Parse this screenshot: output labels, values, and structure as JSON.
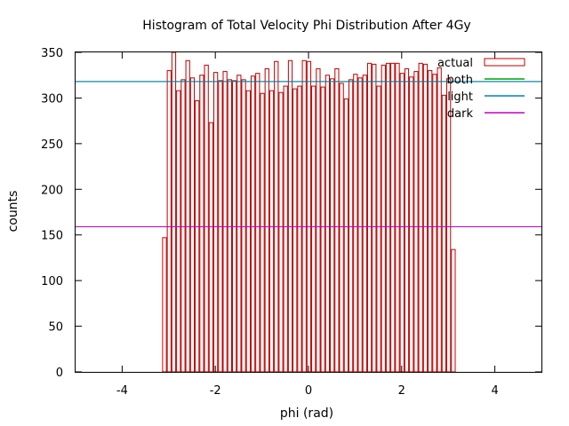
{
  "chart_data": {
    "type": "bar",
    "title": "Histogram of Total Velocity Phi Distribution After 4Gy",
    "xlabel": "phi (rad)",
    "ylabel": "counts",
    "xlim": [
      -5,
      5
    ],
    "ylim": [
      0,
      350
    ],
    "xticks": [
      "-4",
      "-2",
      "0",
      "2",
      "4"
    ],
    "yticks": [
      "0",
      "50",
      "100",
      "150",
      "200",
      "250",
      "300",
      "350"
    ],
    "grid": false,
    "legend_position": "top-right",
    "bin_start": -3.1416,
    "bin_width": 0.1,
    "bars": [
      147,
      330,
      350,
      308,
      320,
      341,
      322,
      297,
      325,
      336,
      273,
      328,
      319,
      329,
      320,
      319,
      325,
      320,
      308,
      324,
      327,
      305,
      332,
      308,
      340,
      306,
      313,
      341,
      310,
      313,
      341,
      340,
      313,
      332,
      312,
      325,
      321,
      332,
      316,
      299,
      320,
      326,
      322,
      325,
      338,
      337,
      313,
      336,
      338,
      338,
      338,
      327,
      332,
      323,
      329,
      338,
      337,
      330,
      326,
      333,
      303,
      321,
      134
    ],
    "series": [
      {
        "name": "actual",
        "kind": "histogram",
        "color": "#c00000"
      },
      {
        "name": "both",
        "kind": "hline",
        "value": 318,
        "color": "#00a000"
      },
      {
        "name": "light",
        "kind": "hline",
        "value": 318,
        "color": "#0080c0"
      },
      {
        "name": "dark",
        "kind": "hline",
        "value": 159,
        "color": "#c000c0"
      }
    ]
  }
}
